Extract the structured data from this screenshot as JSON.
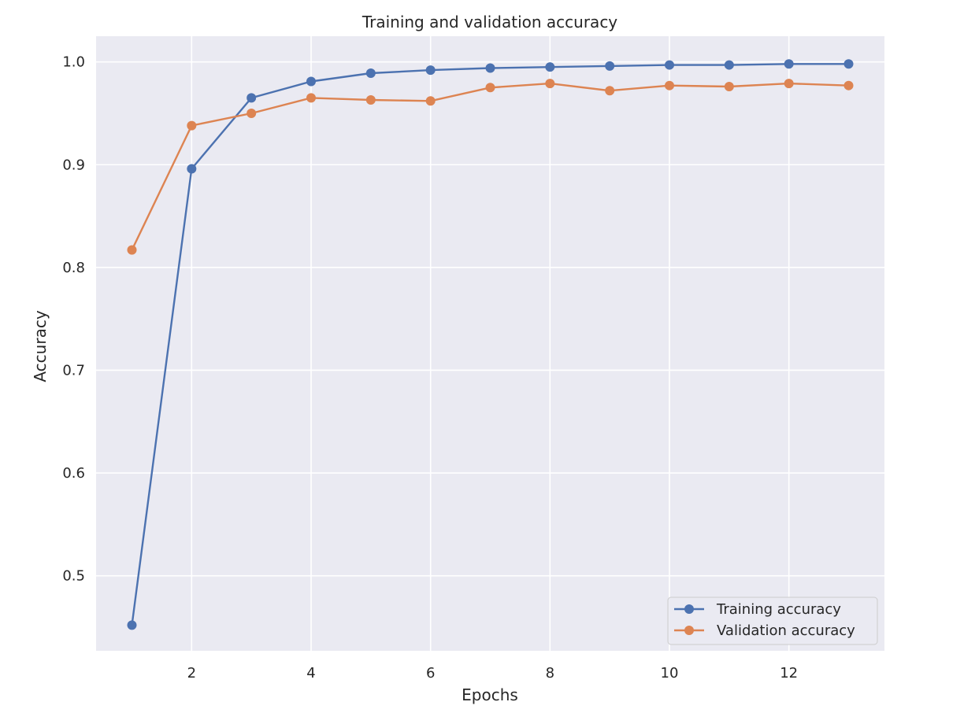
{
  "chart_data": {
    "type": "line",
    "title": "Training and validation accuracy",
    "xlabel": "Epochs",
    "ylabel": "Accuracy",
    "x": [
      1,
      2,
      3,
      4,
      5,
      6,
      7,
      8,
      9,
      10,
      11,
      12,
      13
    ],
    "xlim": [
      0.4,
      13.6
    ],
    "ylim": [
      0.427,
      1.025
    ],
    "xticks": [
      2,
      4,
      6,
      8,
      10,
      12
    ],
    "yticks": [
      0.5,
      0.6,
      0.7,
      0.8,
      0.9,
      1.0
    ],
    "xtick_labels": [
      "2",
      "4",
      "6",
      "8",
      "10",
      "12"
    ],
    "ytick_labels": [
      "0.5",
      "0.6",
      "0.7",
      "0.8",
      "0.9",
      "1.0"
    ],
    "grid": true,
    "legend_position": "bottom-right",
    "series": [
      {
        "name": "Training accuracy",
        "color": "#4c72b0",
        "values": [
          0.452,
          0.896,
          0.965,
          0.981,
          0.989,
          0.992,
          0.994,
          0.995,
          0.996,
          0.997,
          0.997,
          0.998,
          0.998
        ]
      },
      {
        "name": "Validation accuracy",
        "color": "#dd8452",
        "values": [
          0.817,
          0.938,
          0.95,
          0.965,
          0.963,
          0.962,
          0.975,
          0.979,
          0.972,
          0.977,
          0.976,
          0.979,
          0.977
        ]
      }
    ],
    "plot_background": "#eaeaf2",
    "grid_color": "#ffffff"
  }
}
